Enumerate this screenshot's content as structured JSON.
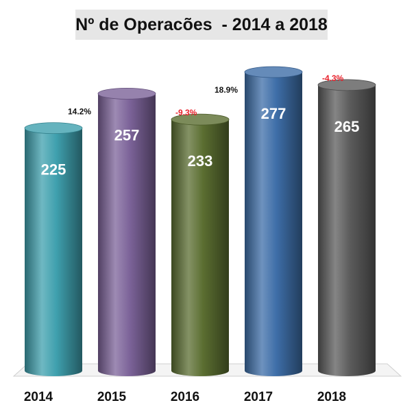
{
  "chart_data": {
    "type": "bar",
    "title": "Nº de Operacões  - 2014 a 2018",
    "categories": [
      "2014",
      "2015",
      "2016",
      "2017",
      "2018"
    ],
    "values": [
      225,
      257,
      233,
      277,
      265
    ],
    "value_labels": [
      "225",
      "257",
      "233",
      "277",
      "265"
    ],
    "change_labels": [
      "",
      "14.2%",
      "-9.3%",
      "18.9%",
      "-4.3%"
    ],
    "change_sign": [
      "",
      "positive",
      "negative",
      "positive",
      "negative"
    ],
    "bar_colors": [
      "#3fa0ae",
      "#7c6399",
      "#5b6e31",
      "#3e6ea8",
      "#5c5c5c"
    ],
    "positive_change_color": "#111111",
    "negative_change_color": "#e8202a",
    "ylim": [
      0,
      277
    ],
    "grid": false,
    "legend": "none",
    "style": "3d-cylinder"
  }
}
